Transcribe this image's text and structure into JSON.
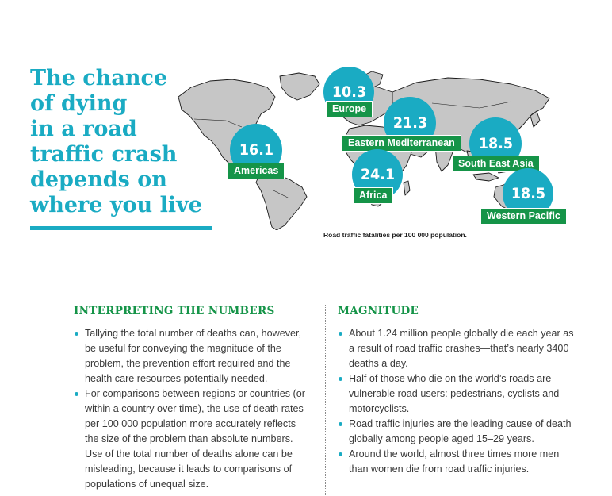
{
  "headline": {
    "lines": [
      "The chance",
      "of dying",
      "in a road",
      "traffic crash",
      "depends on",
      "where you live"
    ]
  },
  "map": {
    "caption": "Road traffic fatalities per 100 000 population.",
    "regions": [
      {
        "name": "Europe",
        "value": "10.3"
      },
      {
        "name": "Eastern Mediterranean",
        "value": "21.3"
      },
      {
        "name": "Americas",
        "value": "16.1"
      },
      {
        "name": "South East Asia",
        "value": "18.5"
      },
      {
        "name": "Africa",
        "value": "24.1"
      },
      {
        "name": "Western Pacific",
        "value": "18.5"
      }
    ],
    "colors": {
      "circle": "#1aabc3",
      "tag": "#159448",
      "land": "#c6c6c6"
    }
  },
  "interpreting": {
    "title": "INTERPRETING THE NUMBERS",
    "items": [
      "Tallying the total number of deaths can, however, be useful for conveying the magnitude of the problem, the prevention effort required and the health care resources potentially needed.",
      "For comparisons between regions or countries (or within a country over time), the use of death rates per 100 000 population more accurately reflects the size of the problem than absolute numbers. Use of the total number of deaths alone can be misleading, because it leads to comparisons of populations of unequal size."
    ]
  },
  "magnitude": {
    "title": "MAGNITUDE",
    "items": [
      "About 1.24 million people globally die each year as a result of road traffic crashes—that’s nearly 3400 deaths a day.",
      "Half of those who die on the world’s roads are vulnerable road users: pedestrians, cyclists and motorcyclists.",
      "Road traffic injuries are the leading cause of death globally among people aged 15–29 years.",
      "Around the world, almost three times more men than women die from road traffic injuries."
    ]
  }
}
